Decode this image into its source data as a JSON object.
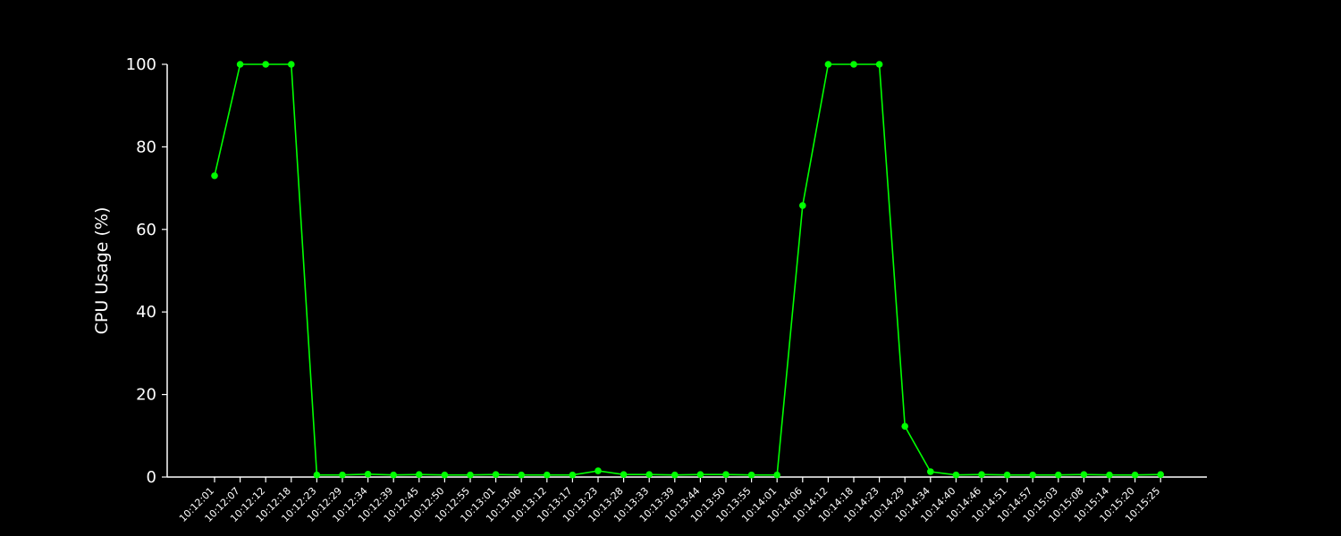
{
  "chart_data": {
    "type": "line",
    "title": "",
    "xlabel": "",
    "ylabel": "CPU Usage (%)",
    "ylim": [
      0,
      100
    ],
    "yticks": [
      0,
      20,
      40,
      60,
      80,
      100
    ],
    "grid": false,
    "legend": "none",
    "categories": [
      "10:12:01",
      "10:12:07",
      "10:12:12",
      "10:12:18",
      "10:12:23",
      "10:12:29",
      "10:12:34",
      "10:12:39",
      "10:12:45",
      "10:12:50",
      "10:12:55",
      "10:13:01",
      "10:13:06",
      "10:13:12",
      "10:13:17",
      "10:13:23",
      "10:13:28",
      "10:13:33",
      "10:13:39",
      "10:13:44",
      "10:13:50",
      "10:13:55",
      "10:14:01",
      "10:14:06",
      "10:14:12",
      "10:14:18",
      "10:14:23",
      "10:14:29",
      "10:14:34",
      "10:14:40",
      "10:14:46",
      "10:14:51",
      "10:14:57",
      "10:15:03",
      "10:15:08",
      "10:15:14",
      "10:15:20",
      "10:15:25"
    ],
    "series": [
      {
        "name": "CPU Usage",
        "color": "#00ff00",
        "values": [
          73,
          100,
          100,
          100,
          0.5,
          0.5,
          0.7,
          0.5,
          0.6,
          0.5,
          0.5,
          0.6,
          0.5,
          0.5,
          0.5,
          1.5,
          0.6,
          0.6,
          0.5,
          0.6,
          0.6,
          0.5,
          0.5,
          65.8,
          100,
          100,
          100,
          12.3,
          1.3,
          0.5,
          0.6,
          0.5,
          0.5,
          0.5,
          0.6,
          0.5,
          0.5,
          0.6
        ]
      }
    ]
  },
  "colors": {
    "background": "#000000",
    "axis": "#ffffff",
    "line": "#00ff00"
  }
}
